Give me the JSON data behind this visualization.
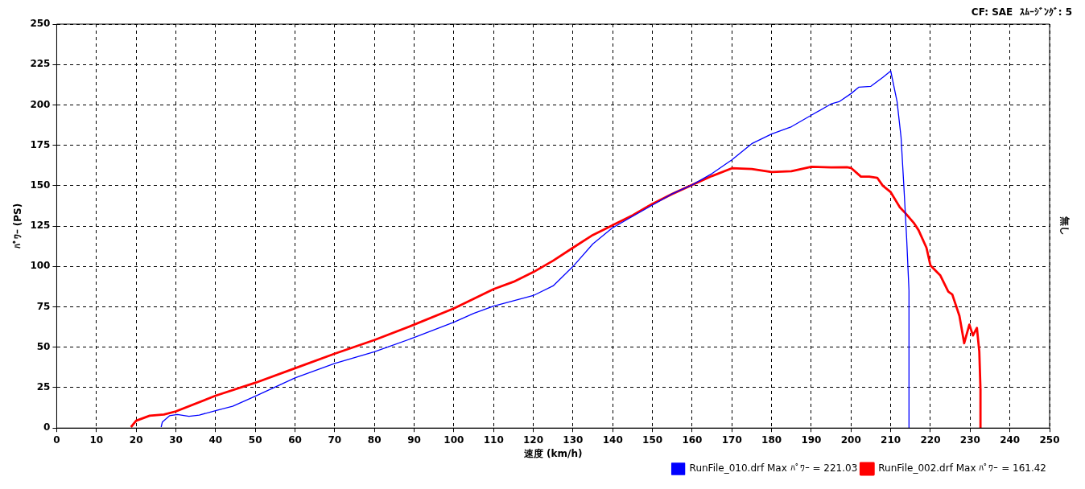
{
  "chart_data": {
    "type": "line",
    "xlabel": "速度 (km/h)",
    "ylabel": "ﾊﾟﾜｰ (PS)",
    "annotations": [
      "CF: SAE  ｽﾑｰｼﾞﾝｸﾞ: 5",
      "無し"
    ],
    "xlim": [
      0,
      250
    ],
    "xticks": [
      0,
      10,
      20,
      30,
      40,
      50,
      60,
      70,
      80,
      90,
      100,
      110,
      120,
      130,
      140,
      150,
      160,
      170,
      180,
      190,
      200,
      210,
      220,
      230,
      240,
      250
    ],
    "ylim": [
      0,
      250
    ],
    "yticks": [
      0,
      25,
      50,
      75,
      100,
      125,
      150,
      175,
      200,
      225,
      250
    ],
    "grid": true,
    "legend": "bottom right",
    "marker": "none",
    "line_style": "solid",
    "series": [
      {
        "name": "RunFile_010.drf Max ﾊﾟﾜｰ = 221.03",
        "color": "#0000ff",
        "x": [
          26.3,
          26.6,
          28.4,
          30.4,
          33.3,
          35.9,
          40,
          44.3,
          50,
          60,
          70,
          80,
          90,
          100,
          105,
          110,
          120,
          125,
          130,
          135,
          140,
          145,
          150,
          155,
          160,
          165,
          170,
          175,
          180,
          185,
          190,
          195,
          197,
          200,
          202,
          205,
          208,
          210,
          211.6,
          212.6,
          213.3,
          214,
          214.6,
          214.6
        ],
        "values": [
          0.6,
          3.7,
          7.6,
          8.4,
          7.3,
          8,
          10.8,
          13.5,
          19.7,
          31,
          40,
          47.2,
          56,
          65.5,
          71,
          75.5,
          82,
          88,
          100,
          114,
          124,
          131,
          138,
          145,
          150.5,
          157.5,
          166,
          176,
          182,
          186.5,
          193.6,
          200.6,
          202,
          207,
          211,
          211.5,
          217,
          221,
          202,
          180,
          150,
          118,
          85,
          0
        ]
      },
      {
        "name": "RunFile_002.drf Max ﾊﾟﾜｰ = 161.42",
        "color": "#ff0000",
        "x": [
          18.7,
          20,
          23.4,
          27,
          30,
          40,
          50,
          60,
          70,
          80,
          90,
          100,
          105,
          110,
          115,
          120,
          125,
          130,
          135,
          140,
          145,
          150,
          155,
          160,
          165,
          170,
          175,
          180,
          185,
          190,
          195,
          199,
          200,
          202.5,
          204.6,
          206.6,
          208,
          210,
          212.3,
          213.8,
          215.8,
          217,
          219,
          220,
          222.5,
          224.5,
          225.5,
          227.3,
          228.5,
          229.8,
          230.7,
          231.7,
          232.3,
          232.6,
          232.6
        ],
        "values": [
          0.6,
          4.5,
          7.6,
          8.4,
          10.3,
          20,
          28,
          37,
          46,
          54.5,
          64,
          74,
          80,
          86,
          90.5,
          96.5,
          103.6,
          111.6,
          119.5,
          125.6,
          131.7,
          138.8,
          144.9,
          150.5,
          156,
          160.8,
          160.3,
          158.5,
          159,
          161.7,
          161.3,
          161.5,
          161,
          155.6,
          155.6,
          154.9,
          150,
          146,
          136.6,
          132.7,
          127,
          122.5,
          111.6,
          100.7,
          94.4,
          84.4,
          82.7,
          69.4,
          52.5,
          64,
          57.3,
          62,
          47.5,
          24,
          0
        ]
      }
    ]
  }
}
